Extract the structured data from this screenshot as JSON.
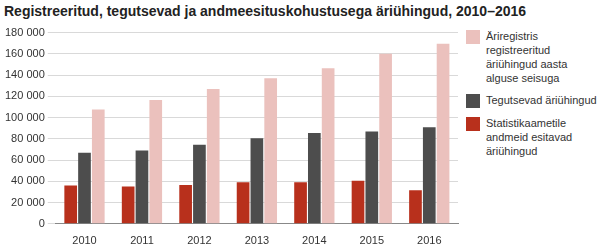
{
  "chart_data": {
    "type": "bar",
    "title": "Registreeritud, tegutsevad ja andmeesituskohustusega äriühingud, 2010–2016",
    "categories": [
      "2010",
      "2011",
      "2012",
      "2013",
      "2014",
      "2015",
      "2016"
    ],
    "series": [
      {
        "name": "Statistikaametile andmeid esitavad äriühingud",
        "color": "#b8301c",
        "values": [
          36000,
          35000,
          36500,
          39000,
          39000,
          40500,
          31500
        ]
      },
      {
        "name": "Tegutsevad äriühingud",
        "color": "#4d4d4d",
        "values": [
          67000,
          69000,
          74500,
          80500,
          85500,
          87000,
          91000
        ]
      },
      {
        "name": "Äriregistris registreeritud äriühingud aasta alguse seisuga",
        "color": "#ebc1bd",
        "values": [
          107500,
          116500,
          127000,
          137000,
          146500,
          160000,
          169500
        ]
      }
    ],
    "ylim": [
      0,
      180000
    ],
    "yticks": [
      0,
      {
        "value": 20000,
        "label": "20 000"
      },
      {
        "value": 40000,
        "label": "40 000"
      },
      {
        "value": 60000,
        "label": "60 000"
      },
      {
        "value": 80000,
        "label": "80 000"
      },
      {
        "value": 100000,
        "label": "100 000"
      },
      {
        "value": 120000,
        "label": "120 000"
      },
      {
        "value": 140000,
        "label": "140 000"
      },
      {
        "value": 160000,
        "label": "160 000"
      },
      {
        "value": 180000,
        "label": "180 000"
      }
    ],
    "grid": true,
    "legend": "right"
  }
}
